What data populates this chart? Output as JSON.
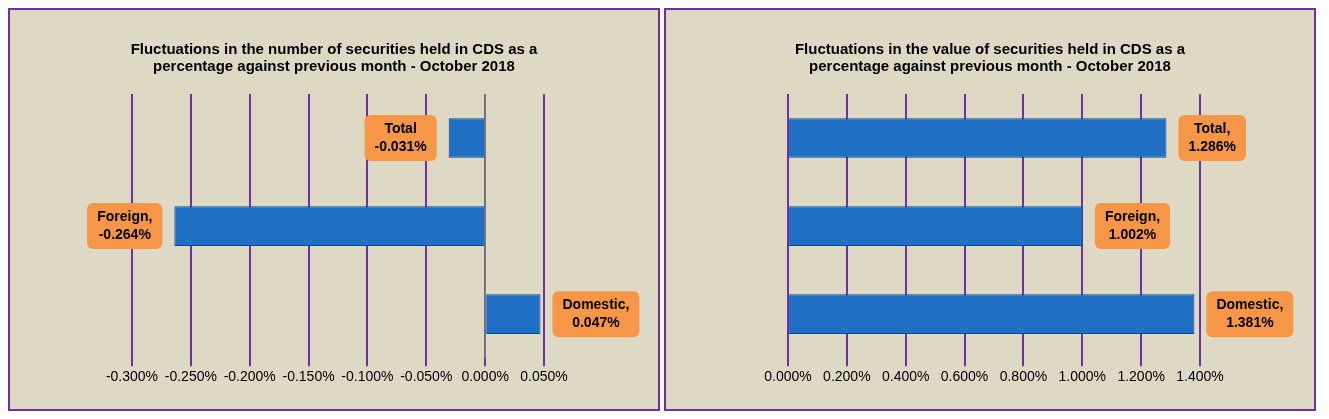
{
  "chart_data": [
    {
      "type": "bar",
      "orientation": "horizontal",
      "title": "Fluctuations in the number of securities held in CDS as a percentage against previous month - October 2018",
      "categories": [
        null,
        null,
        null
      ],
      "color": "#1f6fc5",
      "values": [
        -0.031,
        -0.264,
        0.047
      ],
      "value_labels": [
        "Total\n-0.031%",
        "Foreign,\n-0.264%",
        "Domestic,\n0.047%"
      ],
      "xlim": [
        -0.3,
        0.05
      ],
      "xticks": [
        {
          "value": -0.3,
          "label": "-0.300%"
        },
        {
          "value": -0.25,
          "label": "-0.250%"
        },
        {
          "value": -0.2,
          "label": "-0.200%"
        },
        {
          "value": -0.15,
          "label": "-0.150%"
        },
        {
          "value": -0.1,
          "label": "-0.100%"
        },
        {
          "value": -0.05,
          "label": "-0.050%"
        },
        {
          "value": 0,
          "label": "0.000%"
        },
        {
          "value": 0.05,
          "label": "0.050%"
        }
      ],
      "grid": "x",
      "tick_labels": "x",
      "ref_lines": [
        {
          "axis": "x",
          "value": 0,
          "color": "#808080"
        }
      ]
    },
    {
      "type": "bar",
      "orientation": "horizontal",
      "title": "Fluctuations in the value of securities held in CDS as a percentage against previous month - October 2018",
      "categories": [
        null,
        null,
        null
      ],
      "color": "#1f6fc5",
      "values": [
        1.286,
        1.002,
        1.381
      ],
      "value_labels": [
        "Total,\n1.286%",
        "Foreign,\n1.002%",
        "Domestic,\n1.381%"
      ],
      "xlim": [
        0,
        1.4
      ],
      "xticks": [
        {
          "value": 0,
          "label": "0.000%"
        },
        {
          "value": 0.2,
          "label": "0.200%"
        },
        {
          "value": 0.4,
          "label": "0.400%"
        },
        {
          "value": 0.6,
          "label": "0.600%"
        },
        {
          "value": 0.8,
          "label": "0.800%"
        },
        {
          "value": 1,
          "label": "1.000%"
        },
        {
          "value": 1.2,
          "label": "1.200%"
        },
        {
          "value": 1.4,
          "label": "1.400%"
        }
      ],
      "grid": "x",
      "tick_labels": "x"
    }
  ]
}
